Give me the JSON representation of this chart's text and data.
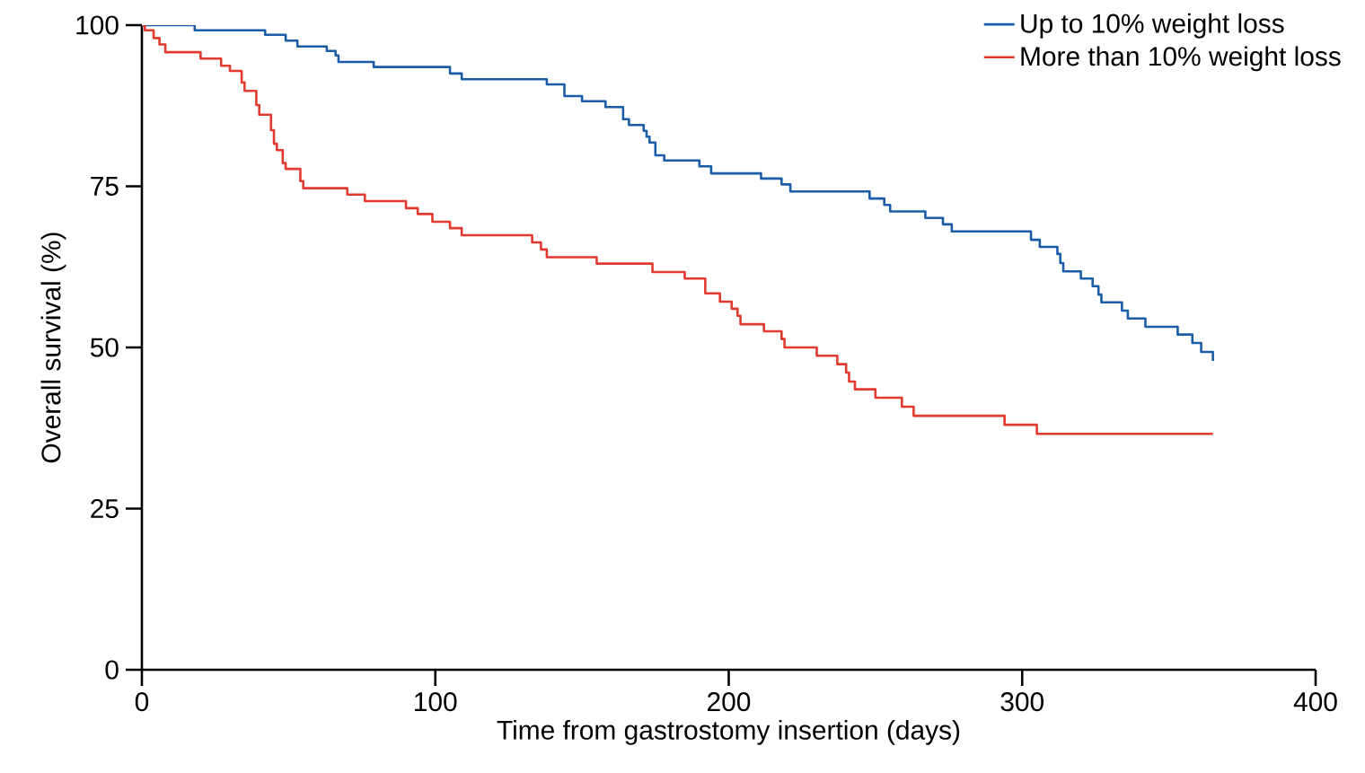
{
  "chart_data": {
    "type": "step",
    "xlabel": "Time from gastrostomy insertion (days)",
    "ylabel": "Overall survival (%)",
    "xlim": [
      0,
      400
    ],
    "ylim": [
      0,
      100
    ],
    "xticks": [
      0,
      100,
      200,
      300,
      400
    ],
    "yticks": [
      0,
      25,
      50,
      75,
      100
    ],
    "grid": false,
    "legend": "top right",
    "marker": "none",
    "line_style": "solid",
    "series": [
      {
        "name": "Up to 10% weight loss",
        "color": "#1a5ca8",
        "x": [
          0,
          18,
          42,
          49,
          53,
          63,
          66,
          67,
          79,
          105,
          109,
          138,
          144,
          150,
          158,
          164,
          166,
          171,
          172,
          173,
          175,
          178,
          190,
          194,
          211,
          218,
          221,
          248,
          253,
          255,
          267,
          273,
          276,
          303,
          306,
          312,
          313,
          314,
          320,
          324,
          326,
          327,
          334,
          336,
          342,
          353,
          358,
          361,
          365
        ],
        "values": [
          100,
          99.2,
          98.5,
          97.6,
          96.7,
          96.0,
          95.3,
          94.3,
          93.5,
          92.5,
          91.6,
          90.8,
          89.0,
          88.2,
          87.3,
          85.4,
          84.5,
          83.6,
          82.7,
          81.8,
          79.8,
          79.0,
          78.1,
          77.0,
          76.2,
          75.3,
          74.2,
          73.1,
          72.1,
          71.1,
          70.1,
          69.1,
          68.0,
          66.7,
          65.6,
          64.5,
          63.1,
          61.8,
          60.7,
          59.5,
          58.2,
          57.0,
          55.7,
          54.5,
          53.2,
          52.0,
          50.7,
          49.3,
          47.9
        ]
      },
      {
        "name": "More than 10% weight loss",
        "color": "#e23a2f",
        "x": [
          0,
          1,
          4,
          6,
          8,
          20,
          27,
          30,
          34,
          35,
          39,
          40,
          44,
          45,
          46,
          48,
          49,
          54,
          55,
          70,
          76,
          90,
          94,
          99,
          105,
          109,
          133,
          136,
          138,
          155,
          174,
          185,
          192,
          197,
          201,
          203,
          204,
          212,
          218,
          219,
          230,
          237,
          240,
          241,
          243,
          250,
          259,
          263,
          294,
          305,
          365
        ],
        "values": [
          100,
          99.2,
          98.0,
          97.0,
          95.8,
          94.8,
          93.7,
          92.9,
          91.1,
          89.8,
          87.6,
          86.1,
          83.7,
          81.6,
          80.6,
          78.6,
          77.7,
          75.8,
          74.7,
          73.7,
          72.7,
          71.6,
          70.7,
          69.5,
          68.5,
          67.4,
          66.3,
          65.2,
          64.0,
          63.0,
          61.7,
          60.7,
          58.4,
          57.1,
          56.0,
          54.9,
          53.6,
          52.5,
          51.3,
          50.0,
          48.7,
          47.4,
          46.1,
          44.7,
          43.5,
          42.2,
          40.8,
          39.4,
          38.0,
          36.6,
          36.6
        ]
      }
    ]
  }
}
